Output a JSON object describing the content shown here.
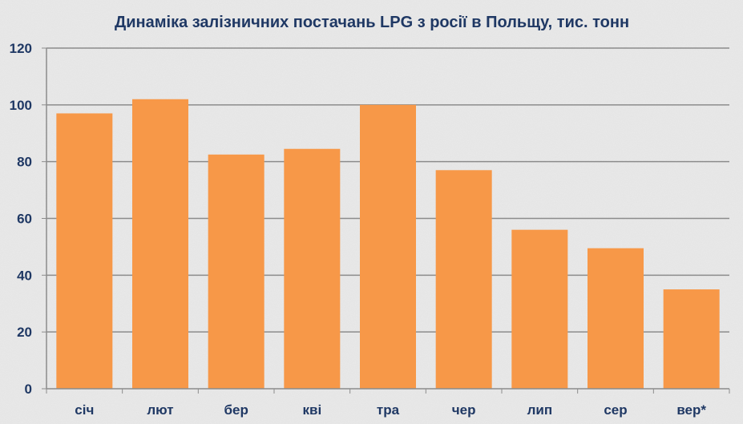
{
  "colors": {
    "background": "#e9e9e9",
    "bar": "#f79848",
    "text": "#1f3864",
    "grid": "#8c8c8c",
    "axis": "#8c8c8c"
  },
  "chart_data": {
    "type": "bar",
    "title": "Динаміка залізничних постачань LPG з росії в Польщу, тис. тонн",
    "xlabel": "",
    "ylabel": "",
    "categories": [
      "січ",
      "лют",
      "бер",
      "кві",
      "тра",
      "чер",
      "лип",
      "сер",
      "вер*"
    ],
    "values": [
      97,
      102,
      82.5,
      84.5,
      100,
      77,
      56,
      49.5,
      35
    ],
    "ylim": [
      0,
      120
    ],
    "yticks": [
      0,
      20,
      40,
      60,
      80,
      100,
      120
    ],
    "grid": true,
    "legend": "none"
  }
}
